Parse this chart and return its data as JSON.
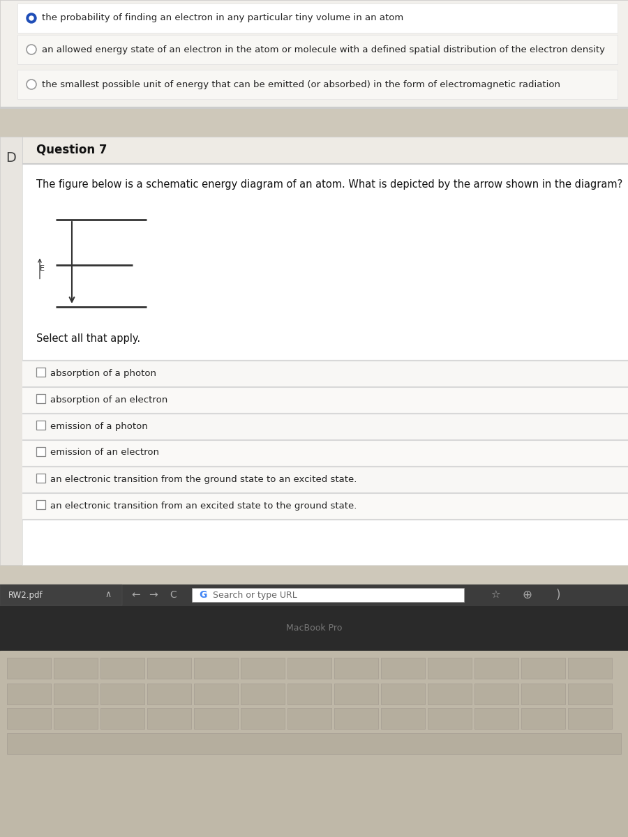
{
  "bg_color": "#cec8ba",
  "screen_bg": "#e8e4dc",
  "white_panel": "#ffffff",
  "panel_bg": "#f2f0ec",
  "border_color": "#cccccc",
  "text_color": "#222222",
  "gray_text": "#666666",
  "divider_color": "#d8d8d8",
  "radio_options": [
    {
      "text": "the probability of finding an electron in any particular tiny volume in an atom",
      "selected": true
    },
    {
      "text": "an allowed energy state of an electron in the atom or molecule with a defined spatial distribution of the electron density",
      "selected": false
    },
    {
      "text": "the smallest possible unit of energy that can be emitted (or absorbed) in the form of electromagnetic radiation",
      "selected": false
    }
  ],
  "question_number": "Question 7",
  "question_letter": "D",
  "question_text": "The figure below is a schematic energy diagram of an atom. What is depicted by the arrow shown in the diagram?",
  "select_text": "Select all that apply.",
  "checkbox_options": [
    "absorption of a photon",
    "absorption of an electron",
    "emission of a photon",
    "emission of an electron",
    "an electronic transition from the ground state to an excited state.",
    "an electronic transition from an excited state to the ground state."
  ],
  "macbook_text": "MacBook Pro",
  "browser_text": "Search or type URL",
  "file_text": "RW2.pdf"
}
